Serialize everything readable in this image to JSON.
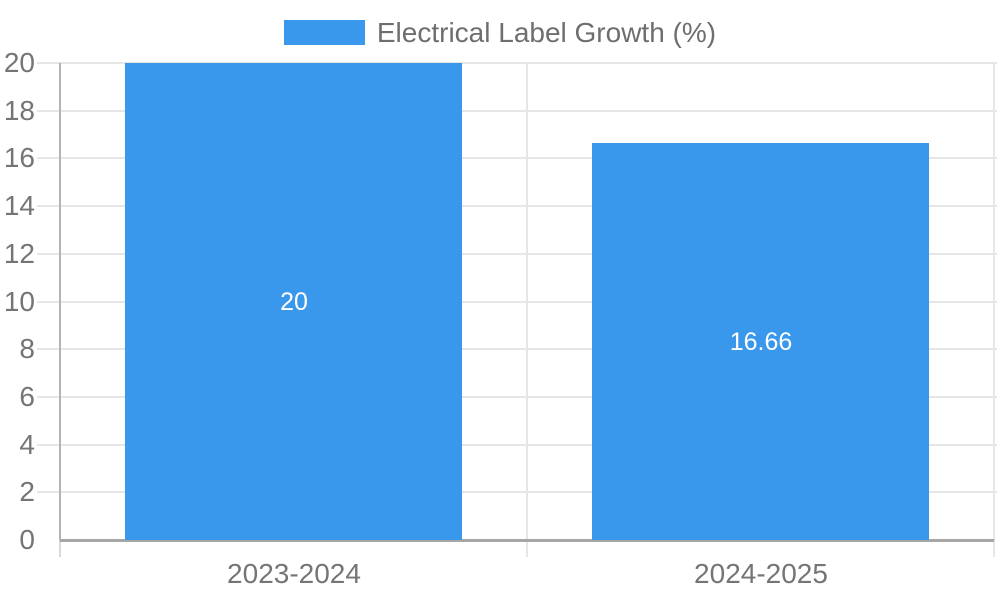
{
  "legend": {
    "label": "Electrical Label Growth (%)",
    "swatch_color": "#3998EC"
  },
  "chart_data": {
    "type": "bar",
    "title": "Electrical Label Growth (%)",
    "categories": [
      "2023-2024",
      "2024-2025"
    ],
    "values": [
      20,
      16.66
    ],
    "value_labels": [
      "20",
      "16.66"
    ],
    "xlabel": "",
    "ylabel": "",
    "ylim": [
      0,
      20
    ],
    "ytick_step": 2,
    "yticks": [
      0,
      2,
      4,
      6,
      8,
      10,
      12,
      14,
      16,
      18,
      20
    ],
    "grid": true,
    "legend_position": "top-center",
    "colors": {
      "bar": "#3998EC",
      "value_label": "#ffffff",
      "axis_label": "#757575",
      "legend_text": "#6e6e6e",
      "gridline": "#e6e6e6",
      "axis_line_left": "#b4b4b4",
      "axis_line_bottom": "#a6a6a6",
      "tick_stub": "#d9d9d9",
      "background": "#ffffff"
    }
  }
}
